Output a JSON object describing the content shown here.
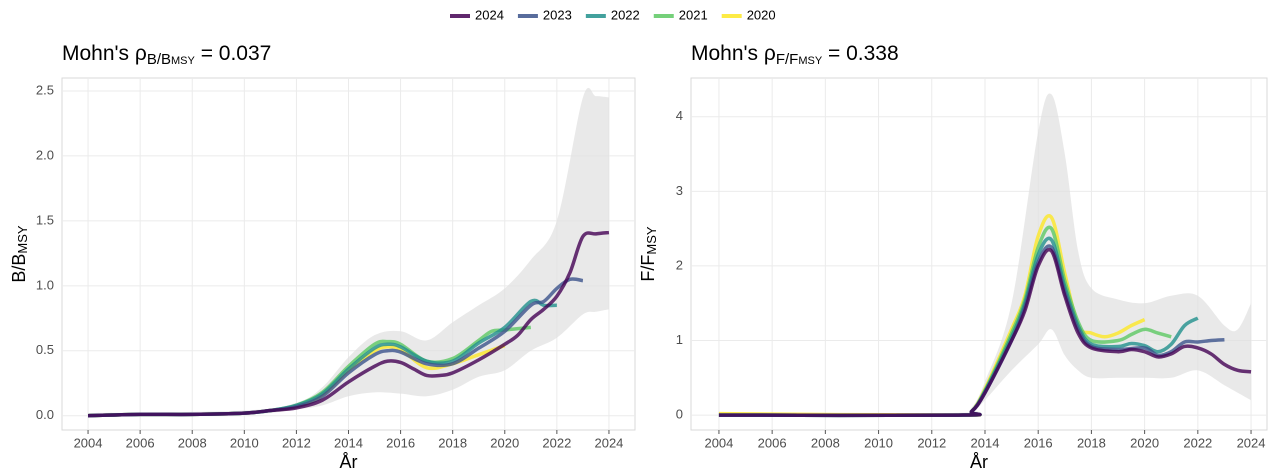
{
  "legend": [
    {
      "name": "2024",
      "color": "#440154"
    },
    {
      "name": "2023",
      "color": "#3b528b"
    },
    {
      "name": "2022",
      "color": "#21908c"
    },
    {
      "name": "2021",
      "color": "#5dc863"
    },
    {
      "name": "2020",
      "color": "#fde725"
    }
  ],
  "chart_data": [
    {
      "type": "line",
      "title": {
        "prefix": "Mohn's ρ",
        "sub": "B/B",
        "subsub": "MSY",
        "suffix": " = 0.037"
      },
      "ylabel": {
        "main": "B/B",
        "sub": "MSY"
      },
      "xlabel": "År",
      "xlim": [
        2003.0,
        2025.0
      ],
      "ylim": [
        -0.11,
        2.6
      ],
      "xticks": [
        2004,
        2006,
        2008,
        2010,
        2012,
        2014,
        2016,
        2018,
        2020,
        2022,
        2024
      ],
      "yticks": [
        {
          "value": 0,
          "label": "0.0"
        },
        0.5,
        {
          "value": 1,
          "label": "1.0"
        },
        1.5,
        {
          "value": 2,
          "label": "2.0"
        },
        2.5
      ],
      "grid": true,
      "band": {
        "x": [
          2004,
          2010,
          2012,
          2013,
          2014,
          2015,
          2016,
          2017,
          2018,
          2019,
          2020,
          2021,
          2022,
          2023,
          2023.5,
          2024
        ],
        "lower": [
          0,
          0.01,
          0.05,
          0.08,
          0.15,
          0.18,
          0.17,
          0.15,
          0.2,
          0.3,
          0.35,
          0.5,
          0.6,
          0.78,
          0.8,
          0.82
        ],
        "upper": [
          0.02,
          0.04,
          0.1,
          0.22,
          0.45,
          0.62,
          0.65,
          0.58,
          0.72,
          0.85,
          0.98,
          1.2,
          1.5,
          2.45,
          2.46,
          2.45
        ],
        "color": "#e0e0e0"
      },
      "series": [
        {
          "x": [
            2004,
            2006,
            2008,
            2010,
            2011,
            2012,
            2013,
            2014,
            2015,
            2015.5,
            2016,
            2016.5,
            2017,
            2017.5,
            2018,
            2019,
            2020,
            2020.5,
            2021,
            2021.5,
            2022,
            2022.5,
            2023,
            2023.5,
            2024
          ],
          "values": [
            0,
            0.01,
            0.01,
            0.02,
            0.04,
            0.06,
            0.12,
            0.26,
            0.38,
            0.42,
            0.41,
            0.36,
            0.31,
            0.31,
            0.33,
            0.43,
            0.55,
            0.62,
            0.74,
            0.82,
            0.92,
            1.1,
            1.38,
            1.4,
            1.41
          ]
        },
        {
          "x": [
            2004,
            2006,
            2008,
            2010,
            2011,
            2012,
            2013,
            2014,
            2015,
            2015.5,
            2016,
            2017,
            2018,
            2019,
            2020,
            2021,
            2021.5,
            2022,
            2022.5,
            2023
          ],
          "values": [
            0,
            0.01,
            0.01,
            0.02,
            0.04,
            0.07,
            0.15,
            0.33,
            0.47,
            0.5,
            0.49,
            0.4,
            0.4,
            0.52,
            0.65,
            0.85,
            0.88,
            0.98,
            1.05,
            1.04
          ]
        },
        {
          "x": [
            2004,
            2006,
            2008,
            2010,
            2011,
            2012,
            2013,
            2014,
            2015,
            2015.5,
            2016,
            2017,
            2018,
            2019,
            2020,
            2021,
            2021.5,
            2022
          ],
          "values": [
            0,
            0.01,
            0.01,
            0.02,
            0.04,
            0.08,
            0.17,
            0.36,
            0.52,
            0.55,
            0.53,
            0.42,
            0.42,
            0.56,
            0.68,
            0.88,
            0.85,
            0.85
          ]
        },
        {
          "x": [
            2004,
            2006,
            2008,
            2010,
            2011,
            2012,
            2013,
            2014,
            2015,
            2015.5,
            2016,
            2017,
            2018,
            2019,
            2019.5,
            2020,
            2021
          ],
          "values": [
            0,
            0.01,
            0.01,
            0.02,
            0.04,
            0.08,
            0.18,
            0.38,
            0.55,
            0.57,
            0.55,
            0.42,
            0.44,
            0.58,
            0.65,
            0.66,
            0.68
          ]
        },
        {
          "x": [
            2004,
            2006,
            2008,
            2010,
            2011,
            2012,
            2013,
            2014,
            2015,
            2015.5,
            2016,
            2017,
            2018,
            2019,
            2020
          ],
          "values": [
            0,
            0.01,
            0.01,
            0.02,
            0.04,
            0.07,
            0.16,
            0.35,
            0.5,
            0.53,
            0.51,
            0.37,
            0.4,
            0.47,
            0.54
          ]
        }
      ]
    },
    {
      "type": "line",
      "title": {
        "prefix": "Mohn's ρ",
        "sub": "F/F",
        "subsub": "MSY",
        "suffix": " = 0.338"
      },
      "ylabel": {
        "main": "F/F",
        "sub": "MSY"
      },
      "xlabel": "År",
      "xlim": [
        2002.95,
        2024.6
      ],
      "ylim": [
        -0.2,
        4.52
      ],
      "xticks": [
        2004,
        2006,
        2008,
        2010,
        2012,
        2014,
        2016,
        2018,
        2020,
        2022,
        2024
      ],
      "yticks": [
        0,
        1,
        2,
        3,
        4
      ],
      "grid": true,
      "band": {
        "x": [
          2004,
          2013,
          2013.5,
          2014,
          2015,
          2016,
          2016.5,
          2017,
          2017.5,
          2018,
          2019,
          2020,
          2021,
          2022,
          2023,
          2023.5,
          2024
        ],
        "lower": [
          -0.02,
          -0.02,
          0.02,
          0.2,
          0.6,
          0.95,
          1.15,
          0.8,
          0.6,
          0.5,
          0.5,
          0.5,
          0.5,
          0.6,
          0.4,
          0.3,
          0.2
        ],
        "upper": [
          0.03,
          0.03,
          0.1,
          0.45,
          1.5,
          3.8,
          4.3,
          3.5,
          2.2,
          1.7,
          1.55,
          1.5,
          1.6,
          1.6,
          1.2,
          1.15,
          1.5
        ],
        "color": "#e0e0e0"
      },
      "series": [
        {
          "x": [
            2004,
            2013,
            2013.5,
            2014,
            2015,
            2015.5,
            2016,
            2016.5,
            2017,
            2017.5,
            2018,
            2019,
            2019.5,
            2020,
            2020.5,
            2021,
            2021.5,
            2022,
            2022.5,
            2023,
            2023.5,
            2024
          ],
          "values": [
            0,
            0,
            0.05,
            0.3,
            1.0,
            1.4,
            2.0,
            2.2,
            1.6,
            1.1,
            0.9,
            0.85,
            0.88,
            0.85,
            0.78,
            0.82,
            0.92,
            0.9,
            0.82,
            0.68,
            0.6,
            0.58
          ]
        },
        {
          "x": [
            2004,
            2013,
            2013.5,
            2014,
            2015,
            2015.5,
            2016,
            2016.5,
            2017,
            2017.5,
            2018,
            2019,
            2020,
            2020.5,
            2021,
            2021.5,
            2022,
            2022.5,
            2023
          ],
          "values": [
            0,
            0,
            0.05,
            0.3,
            1.0,
            1.45,
            2.05,
            2.25,
            1.65,
            1.15,
            0.92,
            0.88,
            0.9,
            0.8,
            0.85,
            0.98,
            0.98,
            1.0,
            1.01
          ]
        },
        {
          "x": [
            2004,
            2013,
            2013.5,
            2014,
            2015,
            2015.5,
            2016,
            2016.5,
            2017,
            2017.5,
            2018,
            2019,
            2019.5,
            2020,
            2020.5,
            2021,
            2021.5,
            2022
          ],
          "values": [
            0,
            0,
            0.05,
            0.32,
            1.05,
            1.5,
            2.15,
            2.35,
            1.72,
            1.2,
            0.95,
            0.92,
            0.96,
            0.93,
            0.85,
            0.95,
            1.2,
            1.3
          ]
        },
        {
          "x": [
            2004,
            2013,
            2013.5,
            2014,
            2015,
            2015.5,
            2016,
            2016.5,
            2017,
            2017.5,
            2018,
            2019,
            2019.5,
            2020,
            2020.5,
            2021
          ],
          "values": [
            0,
            0,
            0.05,
            0.33,
            1.1,
            1.55,
            2.25,
            2.5,
            1.8,
            1.25,
            1.0,
            1.0,
            1.08,
            1.15,
            1.1,
            1.05
          ]
        },
        {
          "x": [
            2004,
            2013,
            2013.5,
            2014,
            2015,
            2015.5,
            2016,
            2016.5,
            2017,
            2017.5,
            2018,
            2018.5,
            2019,
            2019.5,
            2020
          ],
          "values": [
            0.02,
            0,
            0.05,
            0.35,
            1.15,
            1.6,
            2.4,
            2.65,
            1.9,
            1.2,
            1.1,
            1.05,
            1.1,
            1.2,
            1.28
          ]
        }
      ]
    }
  ]
}
